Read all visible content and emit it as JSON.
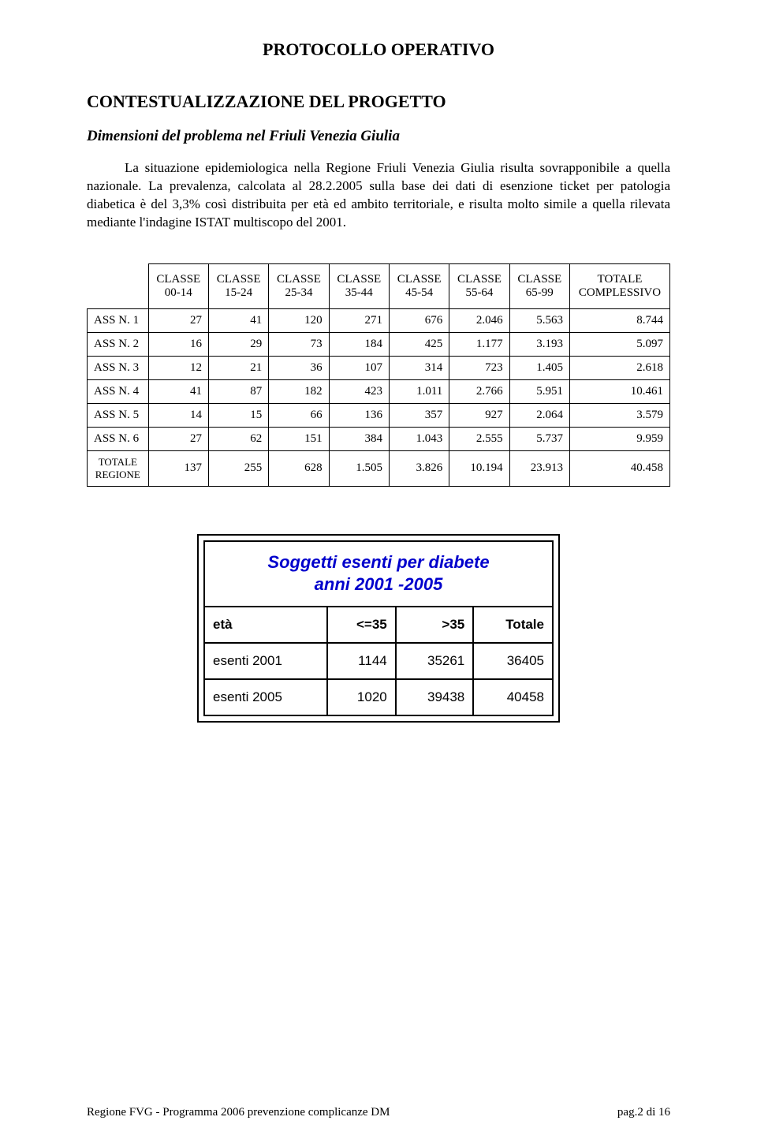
{
  "title": "PROTOCOLLO OPERATIVO",
  "section_heading": "CONTESTUALIZZAZIONE DEL PROGETTO",
  "subheading": "Dimensioni del problema nel Friuli Venezia Giulia",
  "paragraph": "La situazione epidemiologica nella Regione Friuli Venezia Giulia risulta sovrapponibile a quella nazionale. La prevalenza, calcolata al 28.2.2005 sulla base dei dati di esenzione ticket per patologia diabetica è del 3,3% così distribuita per età ed ambito territoriale, e risulta molto simile a quella rilevata mediante l'indagine ISTAT multiscopo del 2001.",
  "table1": {
    "columns": [
      {
        "l1": "CLASSE",
        "l2": "00-14"
      },
      {
        "l1": "CLASSE",
        "l2": "15-24"
      },
      {
        "l1": "CLASSE",
        "l2": "25-34"
      },
      {
        "l1": "CLASSE",
        "l2": "35-44"
      },
      {
        "l1": "CLASSE",
        "l2": "45-54"
      },
      {
        "l1": "CLASSE",
        "l2": "55-64"
      },
      {
        "l1": "CLASSE",
        "l2": "65-99"
      },
      {
        "l1": "TOTALE",
        "l2": "COMPLESSIVO"
      }
    ],
    "rows": [
      {
        "label": "ASS N. 1",
        "cells": [
          "27",
          "41",
          "120",
          "271",
          "676",
          "2.046",
          "5.563",
          "8.744"
        ]
      },
      {
        "label": "ASS N. 2",
        "cells": [
          "16",
          "29",
          "73",
          "184",
          "425",
          "1.177",
          "3.193",
          "5.097"
        ]
      },
      {
        "label": "ASS N. 3",
        "cells": [
          "12",
          "21",
          "36",
          "107",
          "314",
          "723",
          "1.405",
          "2.618"
        ]
      },
      {
        "label": "ASS N. 4",
        "cells": [
          "41",
          "87",
          "182",
          "423",
          "1.011",
          "2.766",
          "5.951",
          "10.461"
        ]
      },
      {
        "label": "ASS N. 5",
        "cells": [
          "14",
          "15",
          "66",
          "136",
          "357",
          "927",
          "2.064",
          "3.579"
        ]
      },
      {
        "label": "ASS N. 6",
        "cells": [
          "27",
          "62",
          "151",
          "384",
          "1.043",
          "2.555",
          "5.737",
          "9.959"
        ]
      },
      {
        "label": "TOTALE REGIONE",
        "cells": [
          "137",
          "255",
          "628",
          "1.505",
          "3.826",
          "10.194",
          "23.913",
          "40.458"
        ]
      }
    ]
  },
  "table2": {
    "title_line1": "Soggetti esenti per diabete",
    "title_line2": "anni 2001 -2005",
    "header": [
      "età",
      "<=35",
      ">35",
      "Totale"
    ],
    "rows": [
      {
        "label": "esenti 2001",
        "cells": [
          "1144",
          "35261",
          "36405"
        ]
      },
      {
        "label": "esenti 2005",
        "cells": [
          "1020",
          "39438",
          "40458"
        ]
      }
    ]
  },
  "footer": {
    "left": "Regione FVG - Programma 2006 prevenzione complicanze DM",
    "right": "pag.2 di 16"
  }
}
